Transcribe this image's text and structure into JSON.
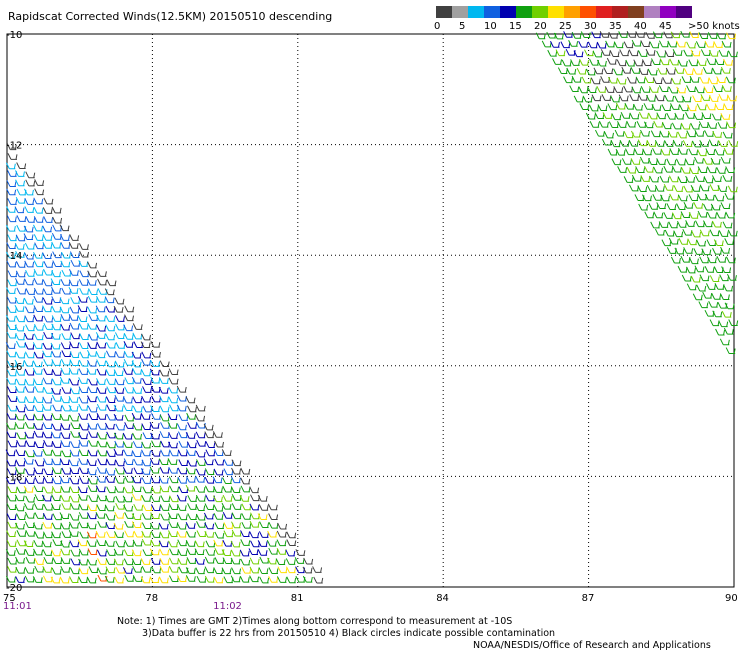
{
  "chart_data": {
    "type": "scatter",
    "title": "Rapidscat Corrected Winds(12.5KM) 20150510 descending",
    "xlabel": "",
    "ylabel": "",
    "xlim": [
      75,
      90
    ],
    "ylim": [
      -20,
      -10
    ],
    "x_ticks": [
      "75",
      "78",
      "81",
      "84",
      "87",
      "90"
    ],
    "x_tick_values": [
      75,
      78,
      81,
      84,
      87,
      90
    ],
    "y_ticks": [
      "-10",
      "-12",
      "-14",
      "-16",
      "-18",
      "-20"
    ],
    "y_tick_values": [
      -10,
      -12,
      -14,
      -16,
      -18,
      -20
    ],
    "grid": true,
    "legend": {
      "placement": "top-right",
      "unit_label": ">50 knots",
      "labels": [
        "0",
        "5",
        "10",
        "15",
        "20",
        "25",
        "30",
        "35",
        "40",
        "45"
      ],
      "colors": [
        "#404040",
        "#a0a0a0",
        "#00b8f0",
        "#1060e0",
        "#0000b0",
        "#10a010",
        "#70d000",
        "#ffe000",
        "#ffa000",
        "#ff5000",
        "#e02020",
        "#b02020",
        "#804020",
        "#b080c0",
        "#9000c0",
        "#500080"
      ]
    },
    "swaths": [
      {
        "name": "",
        "lon_range": [
          75,
          81.8
        ],
        "lat_range": [
          -20,
          -12.3
        ],
        "wind_speed_knots_range": [
          5,
          35
        ]
      },
      {
        "name": "",
        "lon_range": [
          85.7,
          90
        ],
        "lat_range": [
          -16.3,
          -10
        ],
        "wind_speed_knots_range": [
          10,
          35
        ]
      }
    ],
    "time_labels": [
      {
        "text": "11:01",
        "at_lon": 75
      },
      {
        "text": "11:02",
        "at_lon": 79.5
      }
    ]
  },
  "notes": {
    "line1": "Note: 1) Times are GMT 2)Times along bottom correspond to measurement at -10S",
    "line2": "3)Data buffer is 22 hrs from 20150510 4) Black circles indicate possible contamination",
    "credit": "NOAA/NESDIS/Office of Research and Applications"
  }
}
